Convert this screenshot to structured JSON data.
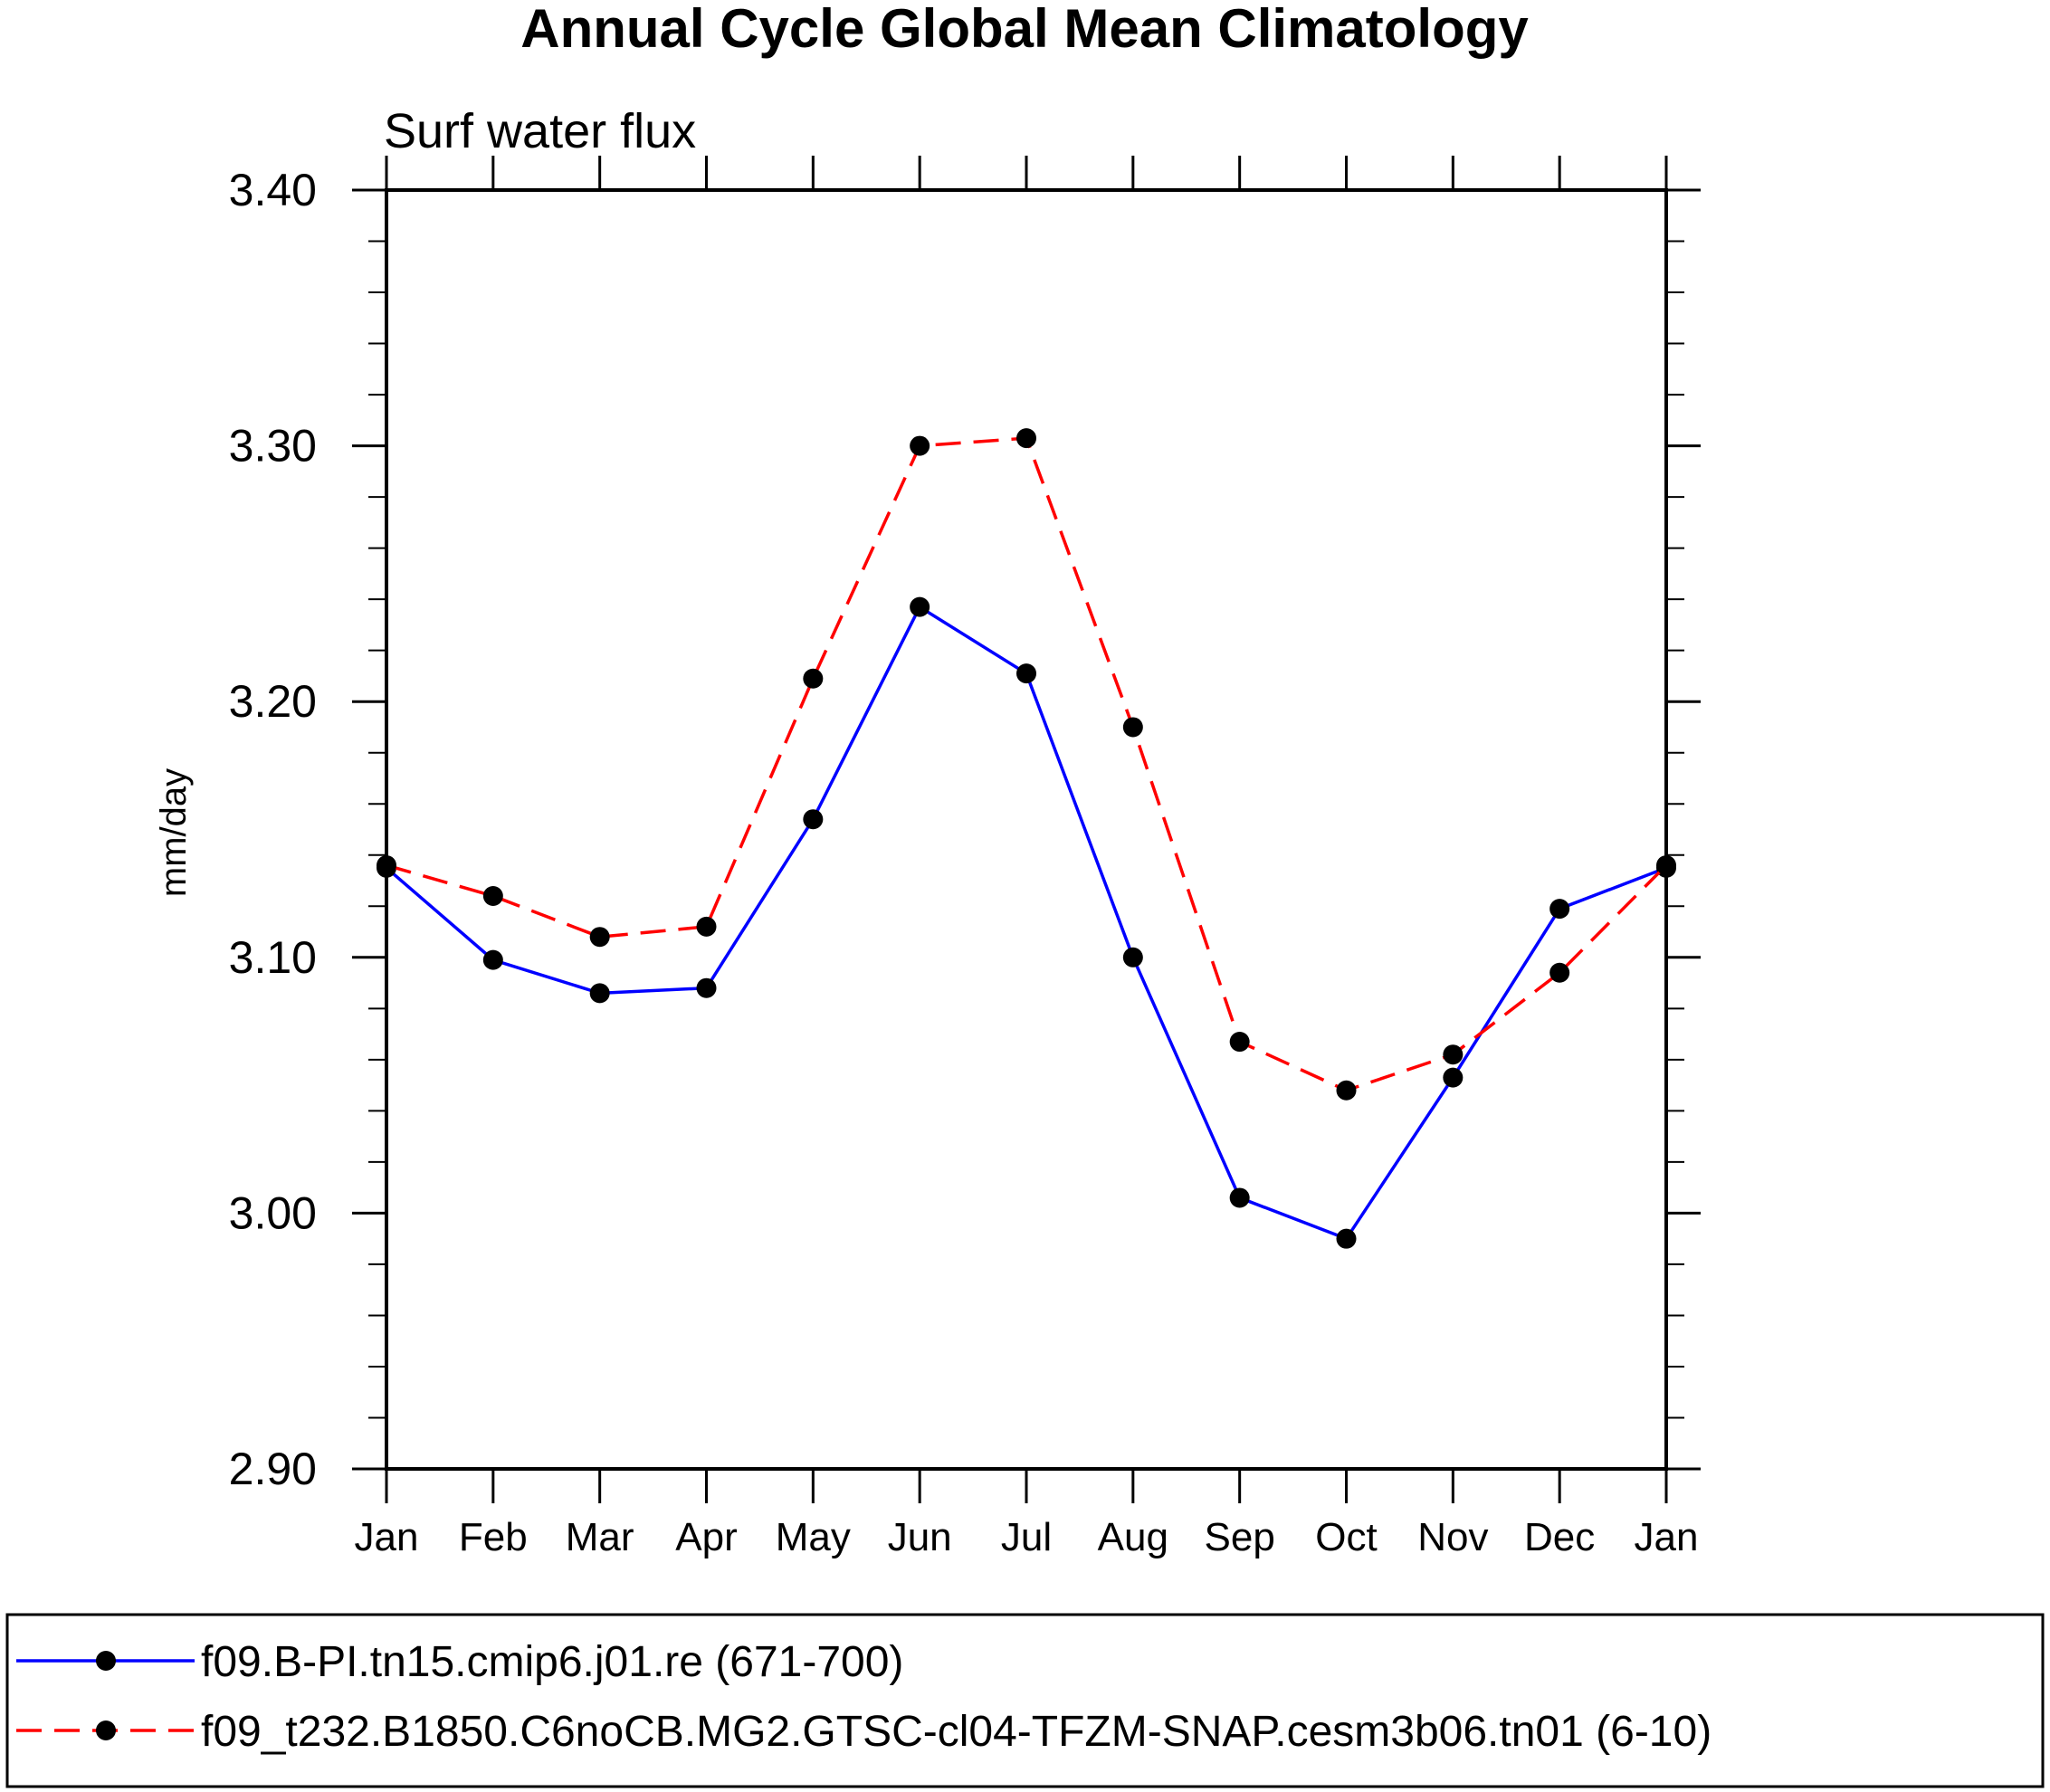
{
  "chart_data": {
    "type": "line",
    "title": "Annual Cycle Global Mean Climatology",
    "subtitle": "Surf water flux",
    "xlabel": "",
    "ylabel": "mm/day",
    "categories": [
      "Jan",
      "Feb",
      "Mar",
      "Apr",
      "May",
      "Jun",
      "Jul",
      "Aug",
      "Sep",
      "Oct",
      "Nov",
      "Dec",
      "Jan"
    ],
    "ylim": [
      2.9,
      3.4
    ],
    "yticks": [
      2.9,
      3.0,
      3.1,
      3.2,
      3.3,
      3.4
    ],
    "ytick_labels": [
      "2.90",
      "3.00",
      "3.10",
      "3.20",
      "3.30",
      "3.40"
    ],
    "yminor_step": 0.02,
    "grid": false,
    "legend_position": "bottom",
    "series": [
      {
        "name": "f09.B-PI.tn15.cmip6.j01.re (671-700)",
        "color": "#0000ff",
        "dash": "solid",
        "marker": "filled-circle",
        "values": [
          3.135,
          3.099,
          3.086,
          3.088,
          3.154,
          3.237,
          3.211,
          3.1,
          3.006,
          2.99,
          3.053,
          3.119,
          3.135
        ]
      },
      {
        "name": "f09_t232.B1850.C6noCB.MG2.GTSC-cl04-TFZM-SNAP.cesm3b06.tn01 (6-10)",
        "color": "#ff0000",
        "dash": "dashed",
        "marker": "filled-circle",
        "values": [
          3.136,
          3.124,
          3.108,
          3.112,
          3.209,
          3.3,
          3.303,
          3.19,
          3.067,
          3.048,
          3.062,
          3.094,
          3.136
        ]
      }
    ]
  }
}
